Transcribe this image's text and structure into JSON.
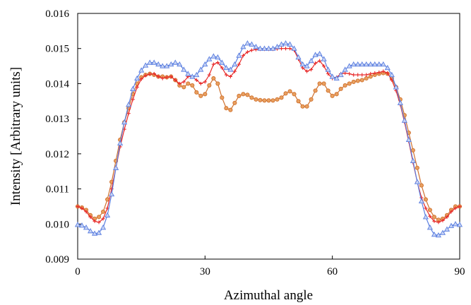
{
  "chart_data": {
    "type": "line",
    "title": "",
    "xlabel": "Azimuthal angle",
    "ylabel": "Intensity [Arbitrary units]",
    "xlim": [
      0,
      90
    ],
    "ylim": [
      0.009,
      0.016
    ],
    "xticks": [
      0,
      30,
      60,
      90
    ],
    "xtick_labels": [
      "0",
      "30",
      "60",
      "90"
    ],
    "yticks": [
      0.009,
      0.01,
      0.011,
      0.012,
      0.013,
      0.014,
      0.015,
      0.016
    ],
    "ytick_labels": [
      "0.009",
      "0.010",
      "0.011",
      "0.012",
      "0.013",
      "0.014",
      "0.015",
      "0.016"
    ],
    "grid": false,
    "legend": "none",
    "series": [
      {
        "color": "#d0712e",
        "marker": "circle",
        "x": [
          0,
          1,
          2,
          3,
          4,
          5,
          6,
          7,
          8,
          9,
          10,
          11,
          12,
          13,
          14,
          15,
          16,
          17,
          18,
          19,
          20,
          21,
          22,
          23,
          24,
          25,
          26,
          27,
          28,
          29,
          30,
          31,
          32,
          33,
          34,
          35,
          36,
          37,
          38,
          39,
          40,
          41,
          42,
          43,
          44,
          45,
          46,
          47,
          48,
          49,
          50,
          51,
          52,
          53,
          54,
          55,
          56,
          57,
          58,
          59,
          60,
          61,
          62,
          63,
          64,
          65,
          66,
          67,
          68,
          69,
          70,
          71,
          72,
          73,
          74,
          75,
          76,
          77,
          78,
          79,
          80,
          81,
          82,
          83,
          84,
          85,
          86,
          87,
          88,
          89,
          90
        ],
        "y": [
          0.0105,
          0.01047,
          0.0104,
          0.01025,
          0.01015,
          0.0102,
          0.01035,
          0.0107,
          0.0112,
          0.0118,
          0.0124,
          0.0129,
          0.0133,
          0.0137,
          0.014,
          0.01418,
          0.01425,
          0.01428,
          0.01425,
          0.0142,
          0.0142,
          0.01418,
          0.0142,
          0.0141,
          0.01395,
          0.0139,
          0.014,
          0.01395,
          0.01375,
          0.01365,
          0.0137,
          0.01395,
          0.01415,
          0.014,
          0.0136,
          0.0133,
          0.01325,
          0.01345,
          0.01365,
          0.0137,
          0.01368,
          0.0136,
          0.01355,
          0.01353,
          0.01352,
          0.01352,
          0.01352,
          0.01355,
          0.0136,
          0.01372,
          0.01378,
          0.0137,
          0.0135,
          0.01335,
          0.01335,
          0.01355,
          0.0138,
          0.014,
          0.014,
          0.0138,
          0.01365,
          0.0137,
          0.01385,
          0.01395,
          0.014,
          0.01405,
          0.01408,
          0.0141,
          0.01415,
          0.0142,
          0.01425,
          0.01428,
          0.0143,
          0.01428,
          0.01415,
          0.0139,
          0.01355,
          0.0131,
          0.0126,
          0.0121,
          0.0116,
          0.0111,
          0.0107,
          0.0104,
          0.0102,
          0.01012,
          0.01015,
          0.01025,
          0.0104,
          0.0105,
          0.0105
        ]
      },
      {
        "color": "#e82a2a",
        "marker": "plus",
        "x": [
          0,
          1,
          2,
          3,
          4,
          5,
          6,
          7,
          8,
          9,
          10,
          11,
          12,
          13,
          14,
          15,
          16,
          17,
          18,
          19,
          20,
          21,
          22,
          23,
          24,
          25,
          26,
          27,
          28,
          29,
          30,
          31,
          32,
          33,
          34,
          35,
          36,
          37,
          38,
          39,
          40,
          41,
          42,
          43,
          44,
          45,
          46,
          47,
          48,
          49,
          50,
          51,
          52,
          53,
          54,
          55,
          56,
          57,
          58,
          59,
          60,
          61,
          62,
          63,
          64,
          65,
          66,
          67,
          68,
          69,
          70,
          71,
          72,
          73,
          74,
          75,
          76,
          77,
          78,
          79,
          80,
          81,
          82,
          83,
          84,
          85,
          86,
          87,
          88,
          89,
          90
        ],
        "y": [
          0.0105,
          0.01045,
          0.01035,
          0.0102,
          0.01008,
          0.01005,
          0.01015,
          0.01045,
          0.011,
          0.0116,
          0.0122,
          0.0127,
          0.01315,
          0.01355,
          0.0139,
          0.01413,
          0.01423,
          0.01427,
          0.01428,
          0.0142,
          0.01415,
          0.01418,
          0.0142,
          0.0141,
          0.014,
          0.01405,
          0.0142,
          0.0142,
          0.0141,
          0.014,
          0.01405,
          0.01425,
          0.01455,
          0.0146,
          0.01445,
          0.01425,
          0.0142,
          0.01435,
          0.01455,
          0.0148,
          0.0149,
          0.01495,
          0.01497,
          0.01498,
          0.01498,
          0.01498,
          0.01498,
          0.01499,
          0.015,
          0.015,
          0.015,
          0.01495,
          0.0147,
          0.01445,
          0.01435,
          0.0144,
          0.01458,
          0.01465,
          0.0145,
          0.01428,
          0.01415,
          0.01418,
          0.01428,
          0.0143,
          0.01428,
          0.01425,
          0.01425,
          0.01425,
          0.01425,
          0.01428,
          0.0143,
          0.01432,
          0.01435,
          0.0143,
          0.0141,
          0.0138,
          0.0134,
          0.0129,
          0.01235,
          0.01175,
          0.0112,
          0.01075,
          0.01045,
          0.01022,
          0.01008,
          0.01005,
          0.0101,
          0.0102,
          0.01035,
          0.01045,
          0.0105
        ]
      },
      {
        "color": "#5a7ee0",
        "marker": "triangle",
        "x": [
          0,
          1,
          2,
          3,
          4,
          5,
          6,
          7,
          8,
          9,
          10,
          11,
          12,
          13,
          14,
          15,
          16,
          17,
          18,
          19,
          20,
          21,
          22,
          23,
          24,
          25,
          26,
          27,
          28,
          29,
          30,
          31,
          32,
          33,
          34,
          35,
          36,
          37,
          38,
          39,
          40,
          41,
          42,
          43,
          44,
          45,
          46,
          47,
          48,
          49,
          50,
          51,
          52,
          53,
          54,
          55,
          56,
          57,
          58,
          59,
          60,
          61,
          62,
          63,
          64,
          65,
          66,
          67,
          68,
          69,
          70,
          71,
          72,
          73,
          74,
          75,
          76,
          77,
          78,
          79,
          80,
          81,
          82,
          83,
          84,
          85,
          86,
          87,
          88,
          89,
          90
        ],
        "y": [
          0.00998,
          0.00996,
          0.0099,
          0.0098,
          0.00973,
          0.00975,
          0.0099,
          0.01025,
          0.01085,
          0.0116,
          0.0123,
          0.0129,
          0.0134,
          0.01385,
          0.01415,
          0.01438,
          0.01452,
          0.0146,
          0.0146,
          0.01455,
          0.0145,
          0.0145,
          0.01455,
          0.0146,
          0.01455,
          0.0144,
          0.01428,
          0.0142,
          0.01425,
          0.0144,
          0.01455,
          0.0147,
          0.01478,
          0.01475,
          0.0146,
          0.01445,
          0.0144,
          0.01455,
          0.0148,
          0.01505,
          0.01515,
          0.01512,
          0.01505,
          0.015,
          0.015,
          0.015,
          0.015,
          0.01505,
          0.01512,
          0.01515,
          0.01512,
          0.015,
          0.01475,
          0.01455,
          0.0145,
          0.01465,
          0.01482,
          0.01485,
          0.0147,
          0.0144,
          0.0142,
          0.01415,
          0.01425,
          0.0144,
          0.0145,
          0.01455,
          0.01455,
          0.01455,
          0.01455,
          0.01455,
          0.01455,
          0.01455,
          0.01455,
          0.01445,
          0.01425,
          0.0139,
          0.01345,
          0.01295,
          0.0124,
          0.0118,
          0.0112,
          0.01065,
          0.0102,
          0.0099,
          0.0097,
          0.00968,
          0.00975,
          0.00985,
          0.00995,
          0.01,
          0.00998
        ]
      }
    ]
  }
}
